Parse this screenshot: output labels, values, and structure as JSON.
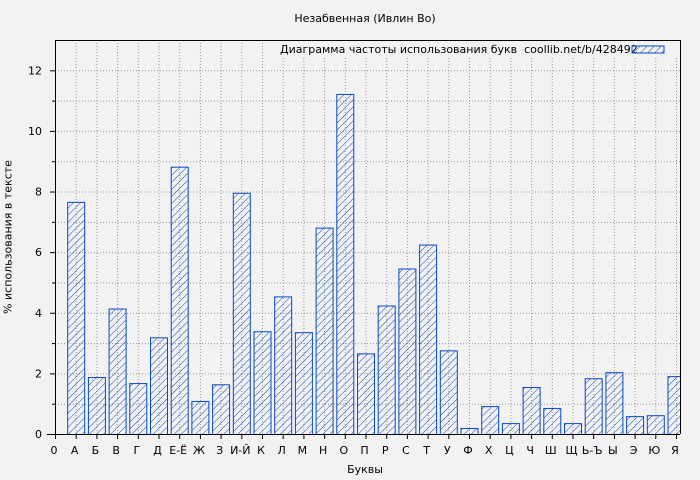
{
  "chart_data": {
    "type": "bar",
    "title": "Незабвенная (Ивлин Во)",
    "xlabel": "Буквы",
    "ylabel": "% использования в тексте",
    "legend": {
      "label": "Диаграмма частоты использования букв  coollib.net/b/428492",
      "position": "top-right"
    },
    "x_ticks": [
      "0",
      "А",
      "Б",
      "В",
      "Г",
      "Д",
      "Е-Ё",
      "Ж",
      "З",
      "И-Й",
      "К",
      "Л",
      "М",
      "Н",
      "О",
      "П",
      "Р",
      "С",
      "Т",
      "У",
      "Ф",
      "Х",
      "Ц",
      "Ч",
      "Ш",
      "Щ",
      "Ь-Ъ",
      "Ы",
      "Э",
      "Ю",
      "Я"
    ],
    "categories": [
      "А",
      "Б",
      "В",
      "Г",
      "Д",
      "Е-Ё",
      "Ж",
      "З",
      "И-Й",
      "К",
      "Л",
      "М",
      "Н",
      "О",
      "П",
      "Р",
      "С",
      "Т",
      "У",
      "Ф",
      "Х",
      "Ц",
      "Ч",
      "Ш",
      "Щ",
      "Ь-Ъ",
      "Ы",
      "Э",
      "Ю",
      "Я"
    ],
    "values": [
      7.66,
      1.88,
      4.14,
      1.68,
      3.19,
      8.82,
      1.09,
      1.64,
      7.96,
      3.39,
      4.54,
      3.36,
      6.81,
      11.22,
      2.66,
      4.24,
      5.46,
      6.25,
      2.76,
      0.2,
      0.92,
      0.36,
      1.55,
      0.86,
      0.36,
      1.84,
      2.04,
      0.59,
      0.62,
      1.91
    ],
    "ylim": [
      0,
      13
    ],
    "y_ticks": [
      0,
      2,
      4,
      6,
      8,
      10,
      12
    ],
    "grid": true,
    "colors": {
      "bar": "#0a48c8",
      "background": "#f2f2f2"
    }
  }
}
